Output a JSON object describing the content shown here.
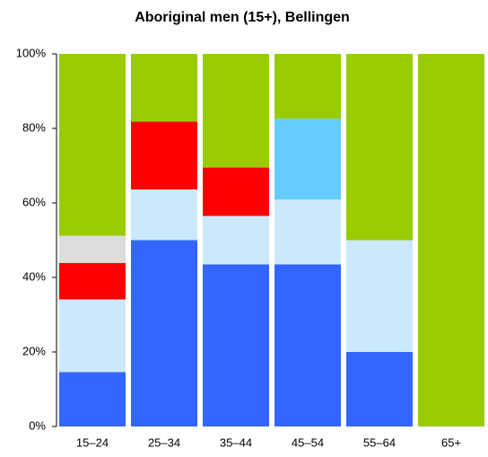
{
  "chart_data": {
    "type": "stacked_bar",
    "title": "Aboriginal men (15+), Bellingen",
    "categories": [
      "15–24",
      "25–34",
      "35–44",
      "45–54",
      "55–64",
      "65+"
    ],
    "series": [
      {
        "color": "#3366ff",
        "values": [
          14.6,
          50,
          43.5,
          43.5,
          20,
          0
        ]
      },
      {
        "color": "#cce9fb",
        "values": [
          19.5,
          13.6,
          13,
          17.4,
          30,
          0
        ]
      },
      {
        "color": "#ff0000",
        "values": [
          9.8,
          18.2,
          13,
          0,
          0,
          0
        ]
      },
      {
        "color": "#dddddd",
        "values": [
          7.3,
          0,
          0,
          0,
          0,
          0
        ]
      },
      {
        "color": "#66ccff",
        "values": [
          0,
          0,
          0,
          21.7,
          0,
          0
        ]
      },
      {
        "color": "#99cc00",
        "values": [
          48.8,
          18.2,
          30.5,
          17.4,
          50,
          100
        ]
      }
    ],
    "ylim": [
      0,
      100
    ],
    "yticks": [
      {
        "value": 0,
        "label": "0%"
      },
      {
        "value": 20,
        "label": "20%"
      },
      {
        "value": 40,
        "label": "40%"
      },
      {
        "value": 60,
        "label": "60%"
      },
      {
        "value": 80,
        "label": "80%"
      },
      {
        "value": 100,
        "label": "100%"
      }
    ]
  }
}
